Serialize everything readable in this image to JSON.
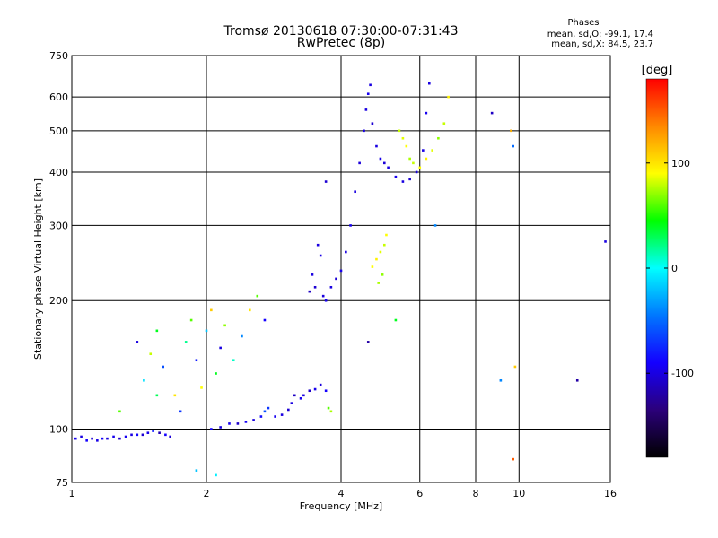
{
  "header": {
    "title": "Tromsø 20130618 07:30:00-07:31:43",
    "subtitle": "RwPretec (8p)"
  },
  "stats": {
    "title": "Phases",
    "line1": "mean, sd,O: -99.1, 17.4",
    "line2": "mean, sd,X: 84.5, 23.7"
  },
  "chart_data": {
    "type": "scatter",
    "title": "Tromsø 20130618 07:30:00-07:31:43",
    "subtitle": "RwPretec (8p)",
    "xlabel": "Frequency [MHz]",
    "ylabel": "Stationary phase Virtual Height [km]",
    "x_scale": "log",
    "y_scale": "log",
    "xlim": [
      1,
      16
    ],
    "ylim": [
      75,
      750
    ],
    "x_ticks": [
      1,
      2,
      4,
      6,
      8,
      10,
      16
    ],
    "x_tick_labels": [
      "1",
      "2",
      "4",
      "6",
      "8",
      "10",
      "16"
    ],
    "y_ticks": [
      75,
      100,
      200,
      300,
      400,
      500,
      600,
      750
    ],
    "y_tick_labels": [
      "75",
      "100",
      "200",
      "300",
      "400",
      "500",
      "600",
      "750"
    ],
    "grid": true,
    "colorbar": {
      "label": "[deg]",
      "range": [
        -180,
        180
      ],
      "ticks": [
        100,
        0,
        -100
      ],
      "tick_labels": [
        "100",
        "0",
        "-100"
      ],
      "colors": [
        "#000000",
        "#2b007a",
        "#1400ff",
        "#0077ff",
        "#00ffff",
        "#00ff00",
        "#ffff00",
        "#ff8800",
        "#ff0000"
      ]
    },
    "colors": {
      "o_trace": "#1a22ee",
      "x_trace": "#e6e62a",
      "grid": "#000000"
    },
    "series": [
      {
        "points": [
          [
            1.02,
            95,
            -95
          ],
          [
            1.05,
            96,
            -100
          ],
          [
            1.08,
            94,
            -90
          ],
          [
            1.11,
            95,
            -105
          ],
          [
            1.14,
            94,
            -98
          ],
          [
            1.17,
            95,
            -92
          ],
          [
            1.2,
            95,
            -102
          ],
          [
            1.24,
            96,
            -96
          ],
          [
            1.28,
            95,
            -110
          ],
          [
            1.32,
            96,
            -94
          ],
          [
            1.36,
            97,
            -100
          ],
          [
            1.4,
            97,
            -88
          ],
          [
            1.44,
            97,
            -105
          ],
          [
            1.48,
            98,
            -97
          ],
          [
            1.52,
            99,
            -80
          ],
          [
            1.57,
            98,
            -115
          ],
          [
            1.62,
            97,
            -90
          ],
          [
            1.66,
            96,
            -104
          ],
          [
            2.05,
            100,
            -90
          ],
          [
            2.15,
            101,
            -100
          ],
          [
            2.25,
            103,
            -95
          ],
          [
            2.35,
            103,
            -108
          ],
          [
            2.45,
            104,
            -92
          ],
          [
            2.55,
            105,
            -100
          ],
          [
            2.65,
            107,
            -85
          ],
          [
            2.7,
            110,
            -60
          ],
          [
            2.75,
            112,
            -70
          ],
          [
            2.85,
            107,
            -95
          ],
          [
            2.95,
            108,
            -100
          ],
          [
            3.05,
            111,
            -105
          ],
          [
            3.1,
            115,
            -100
          ],
          [
            3.15,
            120,
            -110
          ],
          [
            3.25,
            118,
            -95
          ],
          [
            3.3,
            120,
            -100
          ],
          [
            3.4,
            123,
            -108
          ],
          [
            3.5,
            124,
            -96
          ],
          [
            3.6,
            127,
            -102
          ],
          [
            3.7,
            123,
            -90
          ],
          [
            3.75,
            112,
            60
          ],
          [
            3.8,
            110,
            75
          ],
          [
            3.4,
            210,
            -110
          ],
          [
            3.45,
            230,
            -100
          ],
          [
            3.5,
            215,
            -105
          ],
          [
            3.55,
            270,
            -100
          ],
          [
            3.6,
            255,
            -98
          ],
          [
            3.65,
            205,
            -102
          ],
          [
            3.7,
            200,
            -95
          ],
          [
            3.8,
            215,
            -100
          ],
          [
            3.9,
            225,
            -104
          ],
          [
            4.0,
            235,
            -96
          ],
          [
            4.1,
            260,
            -100
          ],
          [
            4.2,
            300,
            -95
          ],
          [
            4.3,
            360,
            -100
          ],
          [
            4.4,
            420,
            -103
          ],
          [
            4.5,
            500,
            -98
          ],
          [
            4.55,
            560,
            -100
          ],
          [
            4.6,
            610,
            -95
          ],
          [
            4.65,
            640,
            -100
          ],
          [
            4.7,
            520,
            -105
          ],
          [
            4.8,
            460,
            -100
          ],
          [
            4.9,
            430,
            -97
          ],
          [
            5.0,
            420,
            -103
          ],
          [
            5.1,
            410,
            -100
          ],
          [
            5.3,
            390,
            -96
          ],
          [
            5.5,
            380,
            -100
          ],
          [
            5.7,
            385,
            -105
          ],
          [
            5.9,
            400,
            -100
          ],
          [
            6.1,
            450,
            -98
          ],
          [
            6.2,
            550,
            -95
          ],
          [
            6.3,
            645,
            -100
          ],
          [
            4.7,
            240,
            90
          ],
          [
            4.8,
            250,
            95
          ],
          [
            4.9,
            260,
            85
          ],
          [
            5.0,
            270,
            80
          ],
          [
            5.05,
            285,
            90
          ],
          [
            4.85,
            220,
            75
          ],
          [
            4.95,
            230,
            70
          ],
          [
            5.4,
            500,
            80
          ],
          [
            5.5,
            480,
            85
          ],
          [
            5.6,
            460,
            90
          ],
          [
            5.7,
            430,
            75
          ],
          [
            5.8,
            420,
            80
          ],
          [
            6.0,
            410,
            90
          ],
          [
            6.2,
            430,
            95
          ],
          [
            6.4,
            450,
            85
          ],
          [
            6.6,
            480,
            70
          ],
          [
            6.8,
            520,
            80
          ],
          [
            6.95,
            600,
            95
          ],
          [
            1.45,
            130,
            -10
          ],
          [
            1.5,
            150,
            80
          ],
          [
            1.55,
            170,
            40
          ],
          [
            1.6,
            140,
            -60
          ],
          [
            1.7,
            120,
            100
          ],
          [
            1.8,
            160,
            20
          ],
          [
            1.85,
            180,
            60
          ],
          [
            1.9,
            145,
            -80
          ],
          [
            1.95,
            125,
            90
          ],
          [
            2.0,
            170,
            -20
          ],
          [
            2.05,
            190,
            110
          ],
          [
            2.1,
            135,
            40
          ],
          [
            2.15,
            155,
            -100
          ],
          [
            2.2,
            175,
            70
          ],
          [
            2.3,
            145,
            10
          ],
          [
            2.4,
            165,
            -40
          ],
          [
            2.5,
            190,
            100
          ],
          [
            2.6,
            205,
            60
          ],
          [
            2.7,
            180,
            -90
          ],
          [
            1.28,
            110,
            60
          ],
          [
            1.4,
            160,
            -100
          ],
          [
            1.55,
            120,
            30
          ],
          [
            1.75,
            110,
            -70
          ],
          [
            1.9,
            80,
            -20
          ],
          [
            2.1,
            78,
            -5
          ],
          [
            8.7,
            550,
            -110
          ],
          [
            9.6,
            500,
            120
          ],
          [
            9.7,
            460,
            -50
          ],
          [
            9.8,
            140,
            110
          ],
          [
            9.1,
            130,
            -40
          ],
          [
            9.7,
            85,
            150
          ],
          [
            13.5,
            130,
            -120
          ],
          [
            15.6,
            275,
            -100
          ],
          [
            6.5,
            300,
            -40
          ],
          [
            5.3,
            180,
            40
          ],
          [
            3.7,
            380,
            -105
          ],
          [
            4.6,
            160,
            -120
          ]
        ]
      }
    ]
  }
}
